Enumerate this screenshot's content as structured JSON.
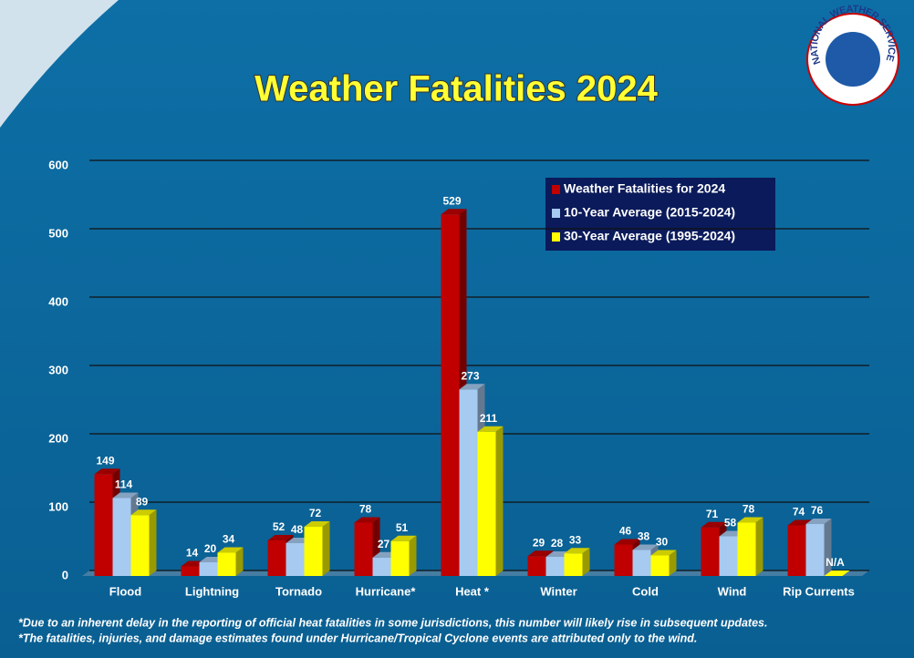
{
  "chart_data": {
    "type": "bar",
    "title": "Weather Fatalities 2024",
    "logo_text": "NATIONAL WEATHER SERVICE",
    "categories": [
      "Flood",
      "Lightning",
      "Tornado",
      "Hurricane*",
      "Heat *",
      "Winter",
      "Cold",
      "Wind",
      "Rip Currents"
    ],
    "series": [
      {
        "name": "Weather Fatalities for 2024",
        "color": "#c00000",
        "values": [
          149,
          14,
          52,
          78,
          529,
          29,
          46,
          71,
          74
        ]
      },
      {
        "name": "10-Year Average (2015-2024)",
        "color": "#a6caf0",
        "values": [
          114,
          20,
          48,
          27,
          273,
          28,
          38,
          58,
          76
        ]
      },
      {
        "name": "30-Year Average (1995-2024)",
        "color": "#ffff00",
        "values": [
          89,
          34,
          72,
          51,
          211,
          33,
          30,
          78,
          null
        ],
        "value_labels": [
          "89",
          "34",
          "72",
          "51",
          "211",
          "33",
          "30",
          "78",
          "N/A"
        ]
      }
    ],
    "ylim": [
      0,
      600
    ],
    "yticks": [
      0,
      100,
      200,
      300,
      400,
      500,
      600
    ],
    "grid": true,
    "footnotes": [
      "*Due to an inherent delay in the reporting of official heat fatalities in some jurisdictions, this number will likely rise in subsequent updates.",
      "*The fatalities, injuries, and damage estimates found under Hurricane/Tropical Cyclone events are attributed only to the wind."
    ]
  }
}
